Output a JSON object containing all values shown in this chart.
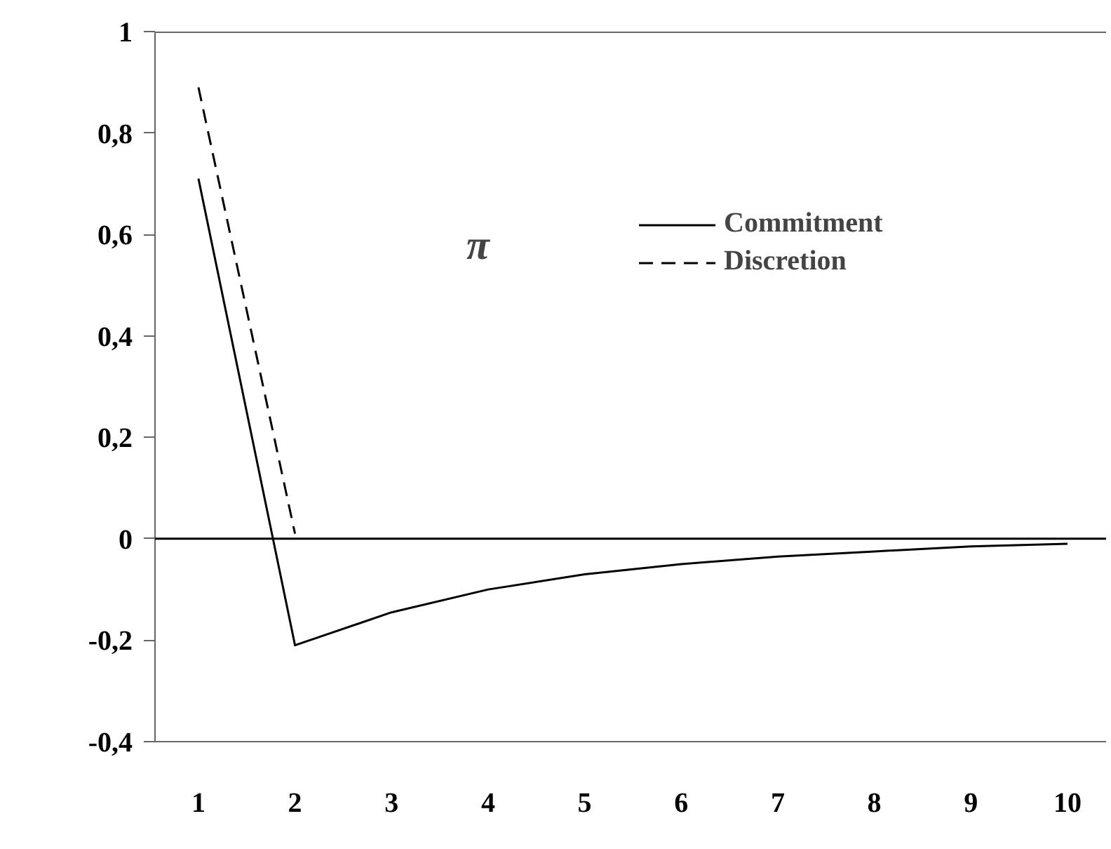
{
  "chart_data": {
    "type": "line",
    "x": [
      1,
      2,
      3,
      4,
      5,
      6,
      7,
      8,
      9,
      10
    ],
    "series": [
      {
        "name": "Commitment",
        "color": "#000000",
        "line_style": "solid",
        "values": [
          0.71,
          -0.21,
          -0.145,
          -0.1,
          -0.07,
          -0.05,
          -0.035,
          -0.025,
          -0.015,
          -0.01
        ]
      },
      {
        "name": "Discretion",
        "color": "#000000",
        "line_style": "dashed",
        "x": [
          1,
          2
        ],
        "values": [
          0.89,
          0.01
        ]
      }
    ],
    "annotations": [
      "π"
    ],
    "xlim": [
      0.55,
      10.4
    ],
    "xticks": [
      1,
      2,
      3,
      4,
      5,
      6,
      7,
      8,
      9,
      10
    ],
    "ylim": [
      -0.4,
      1
    ],
    "yticks": [
      {
        "value": -0.4,
        "label": "-0,4"
      },
      {
        "value": -0.2,
        "label": "-0,2"
      },
      0,
      {
        "value": 0.2,
        "label": "0,2"
      },
      {
        "value": 0.4,
        "label": "0,4"
      },
      {
        "value": 0.6,
        "label": "0,6"
      },
      {
        "value": 0.8,
        "label": "0,8"
      },
      1
    ],
    "ref_lines": [
      {
        "axis": "y",
        "value": 0,
        "color": "#000000"
      }
    ],
    "grid": false,
    "legend": "top right",
    "marker": "none"
  }
}
